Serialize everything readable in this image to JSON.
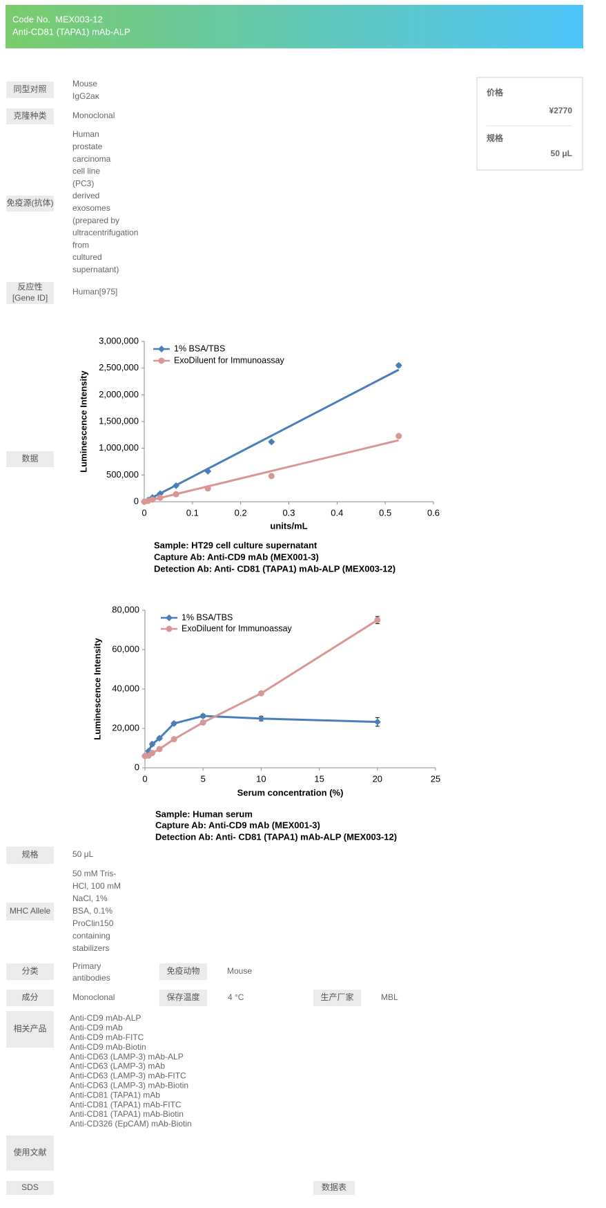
{
  "header": {
    "code_label": "Code No.",
    "code": "MEX003-12",
    "name": "Anti-CD81 (TAPA1) mAb-ALP"
  },
  "price_box": {
    "price_label": "价格",
    "price": "¥2770",
    "size_label": "规格",
    "size": "50 μL"
  },
  "rows_top": [
    {
      "label": [
        "同型对照"
      ],
      "value": [
        "Mouse",
        "IgG2aκ"
      ]
    },
    {
      "label": [
        "克隆种类"
      ],
      "value": [
        "Monoclonal"
      ]
    },
    {
      "label": [
        "免疫源(抗体)"
      ],
      "value": [
        "Human",
        "prostate",
        "carcinoma",
        "cell line",
        "(PC3)",
        "derived",
        "exosomes",
        "(prepared by",
        "ultracentrifugation",
        "from",
        "cultured",
        "supernatant)"
      ]
    },
    {
      "label": [
        "反应性",
        "[Gene ID]"
      ],
      "value": [
        "Human[975]"
      ]
    }
  ],
  "data_label": "数据",
  "chart_data": [
    {
      "type": "scatter",
      "x_label": "units/mL",
      "y_label": "Luminescence Intensity",
      "x": [
        0,
        0.008,
        0.017,
        0.033,
        0.066,
        0.132,
        0.264,
        0.528
      ],
      "fit_x": [
        0,
        0.528
      ],
      "series": [
        {
          "name": "1% BSA/TBS",
          "color": "#4a7ebb",
          "marker": "diamond",
          "values": [
            0,
            30000,
            80000,
            150000,
            300000,
            570000,
            1120000,
            2550000
          ],
          "errors": [
            5000,
            5000,
            8000,
            10000,
            12000,
            20000,
            25000,
            30000
          ],
          "fit": [
            0,
            2470000
          ]
        },
        {
          "name": "ExoDiluent for Immunoassay",
          "color": "#d99694",
          "marker": "circle",
          "values": [
            0,
            15000,
            40000,
            75000,
            140000,
            250000,
            480000,
            1230000
          ],
          "errors": [
            5000,
            5000,
            5000,
            8000,
            8000,
            10000,
            15000,
            25000
          ],
          "fit": [
            0,
            1150000
          ]
        }
      ],
      "xlim": [
        0,
        0.6
      ],
      "xticks": [
        0,
        0.1,
        0.2,
        0.3,
        0.4,
        0.5,
        0.6
      ],
      "ylim": [
        0,
        3000000
      ],
      "yticks": [
        0,
        {
          "value": 500000,
          "label": "500,000"
        },
        {
          "value": 1000000,
          "label": "1,000,000"
        },
        {
          "value": 1500000,
          "label": "1,500,000"
        },
        {
          "value": 2000000,
          "label": "2,000,000"
        },
        {
          "value": 2500000,
          "label": "2,500,000"
        },
        {
          "value": 3000000,
          "label": "3,000,000"
        }
      ],
      "notes": [
        "Sample: HT29 cell culture supernatant",
        "Capture Ab: Anti-CD9 mAb (MEX001-3)",
        "Detection Ab: Anti- CD81 (TAPA1) mAb-ALP (MEX003-12)"
      ]
    },
    {
      "type": "line",
      "x_label": "Serum concentration (%)",
      "y_label": "Luminescence Intensity",
      "x": [
        0,
        0.3125,
        0.625,
        1.25,
        2.5,
        5,
        10,
        20
      ],
      "series": [
        {
          "name": "1% BSA/TBS",
          "color": "#4a7ebb",
          "marker": "diamond",
          "values": [
            6000,
            8500,
            12000,
            15000,
            22500,
            26300,
            25000,
            23300
          ],
          "errors": [
            500,
            600,
            900,
            700,
            800,
            900,
            1200,
            2200
          ]
        },
        {
          "name": "ExoDiluent for Immunoassay",
          "color": "#d99694",
          "marker": "circle",
          "values": [
            6000,
            6200,
            7500,
            9500,
            14500,
            23000,
            37800,
            75000
          ],
          "errors": [
            400,
            400,
            500,
            500,
            600,
            700,
            900,
            1800
          ]
        }
      ],
      "xlim": [
        0,
        25
      ],
      "xticks": [
        0,
        5,
        10,
        15,
        20,
        25
      ],
      "ylim": [
        0,
        80000
      ],
      "yticks": [
        0,
        {
          "value": 20000,
          "label": "20,000"
        },
        {
          "value": 40000,
          "label": "40,000"
        },
        {
          "value": 60000,
          "label": "60,000"
        },
        {
          "value": 80000,
          "label": "80,000"
        }
      ],
      "notes": [
        "Sample: Human serum",
        "Capture Ab: Anti-CD9 mAb (MEX001-3)",
        "Detection Ab: Anti- CD81 (TAPA1) mAb-ALP (MEX003-12)"
      ]
    }
  ],
  "rows_bottom": [
    {
      "label": [
        "规格"
      ],
      "value": [
        "50 μL"
      ]
    },
    {
      "label": [
        "MHC Allele"
      ],
      "value": [
        "50 mM Tris-",
        "HCl, 100 mM",
        "NaCl, 1%",
        "BSA, 0.1%",
        "ProClin150",
        "containing",
        "stabilizers"
      ]
    },
    {
      "label": [
        "分类"
      ],
      "value": [
        "Primary",
        "antibodies"
      ],
      "extra": [
        {
          "label": "免疫动物",
          "value": "Mouse"
        }
      ]
    },
    {
      "label": [
        "成分"
      ],
      "value": [
        "Monoclonal"
      ],
      "extra": [
        {
          "label": "保存温度",
          "value": "4 °C"
        },
        {
          "label": "生产厂家",
          "value": "MBL"
        }
      ]
    },
    {
      "label": [
        "相关产品"
      ],
      "value": [
        "Anti-CD9 mAb-ALP",
        "Anti-CD9 mAb",
        "Anti-CD9 mAb-FITC",
        "Anti-CD9 mAb-Biotin",
        "Anti-CD63 (LAMP-3) mAb-ALP",
        "Anti-CD63 (LAMP-3) mAb",
        "Anti-CD63 (LAMP-3) mAb-FITC",
        "Anti-CD63 (LAMP-3) mAb-Biotin",
        "Anti-CD81 (TAPA1) mAb",
        "Anti-CD81 (TAPA1) mAb-FITC",
        "Anti-CD81 (TAPA1) mAb-Biotin",
        "Anti-CD326 (EpCAM) mAb-Biotin"
      ]
    },
    {
      "label": [
        "使用文献"
      ]
    },
    {
      "label": [
        "SDS"
      ],
      "extra": [
        {
          "label": "数据表"
        }
      ]
    }
  ]
}
